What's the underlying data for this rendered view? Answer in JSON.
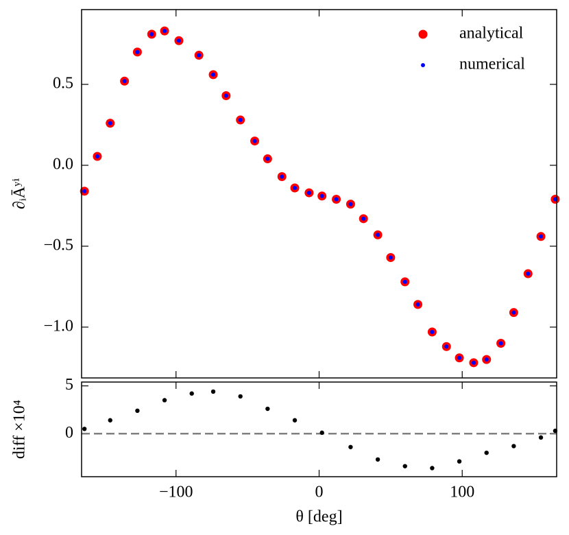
{
  "chart_data": [
    {
      "type": "scatter",
      "ylabel": "∂ᵢĀʸⁱ",
      "x": [
        -164,
        -155,
        -146,
        -136,
        -127,
        -117,
        -108,
        -98,
        -84,
        -74,
        -65,
        -55,
        -45,
        -36,
        -26,
        -17,
        -7,
        2,
        12,
        22,
        31,
        41,
        50,
        60,
        69,
        79,
        89,
        98,
        108,
        117,
        127,
        136,
        146,
        155,
        165
      ],
      "series": [
        {
          "name": "analytical",
          "color": "#ff0000",
          "values": [
            -0.16,
            0.055,
            0.26,
            0.52,
            0.7,
            0.81,
            0.83,
            0.77,
            0.68,
            0.56,
            0.43,
            0.28,
            0.15,
            0.04,
            -0.07,
            -0.14,
            -0.17,
            -0.19,
            -0.21,
            -0.24,
            -0.33,
            -0.43,
            -0.57,
            -0.72,
            -0.86,
            -1.03,
            -1.12,
            -1.19,
            -1.22,
            -1.2,
            -1.1,
            -0.91,
            -0.67,
            -0.44,
            -0.21
          ]
        },
        {
          "name": "numerical",
          "color": "#0000ff",
          "values": [
            -0.16,
            0.055,
            0.26,
            0.52,
            0.7,
            0.81,
            0.83,
            0.77,
            0.68,
            0.56,
            0.43,
            0.28,
            0.15,
            0.04,
            -0.07,
            -0.14,
            -0.17,
            -0.19,
            -0.21,
            -0.24,
            -0.33,
            -0.43,
            -0.57,
            -0.72,
            -0.86,
            -1.03,
            -1.12,
            -1.19,
            -1.22,
            -1.2,
            -1.1,
            -0.91,
            -0.67,
            -0.44,
            -0.21
          ]
        }
      ],
      "xlim": [
        -166,
        166
      ],
      "ylim": [
        -1.314,
        0.962
      ],
      "yticks": [
        {
          "value": -1.0,
          "label": "−1.0"
        },
        {
          "value": -0.5,
          "label": "−0.5"
        },
        {
          "value": 0.0,
          "label": "0.0"
        },
        {
          "value": 0.5,
          "label": "0.5"
        }
      ],
      "legend": "upper right"
    },
    {
      "type": "scatter",
      "xlabel": "θ [deg]",
      "ylabel": "diff ×10⁴",
      "x": [
        -164,
        -146,
        -127,
        -108,
        -89,
        -74,
        -55,
        -36,
        -17,
        2,
        22,
        41,
        60,
        79,
        98,
        117,
        136,
        155,
        165
      ],
      "series": [
        {
          "color": "#000000",
          "values": [
            0.5,
            1.4,
            2.4,
            3.5,
            4.2,
            4.4,
            3.9,
            2.6,
            1.4,
            0.1,
            -1.4,
            -2.7,
            -3.4,
            -3.6,
            -2.9,
            -2.0,
            -1.3,
            -0.4,
            0.3
          ]
        }
      ],
      "hline": 0,
      "xlim": [
        -166,
        166
      ],
      "ylim": [
        -4.5,
        5.4
      ],
      "xticks": [
        {
          "value": -100,
          "label": "−100"
        },
        0,
        100
      ],
      "yticks": [
        0,
        5
      ]
    }
  ]
}
